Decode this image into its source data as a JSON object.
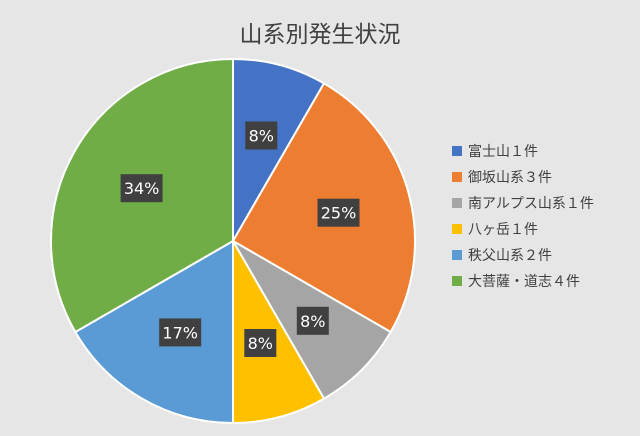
{
  "chart_data": {
    "type": "pie",
    "title": "山系別発生状況",
    "series": [
      {
        "name": "富士山１件",
        "value": 1,
        "label": "8%",
        "color": "#4472C4"
      },
      {
        "name": "御坂山系３件",
        "value": 3,
        "label": "25%",
        "color": "#ED7D31"
      },
      {
        "name": "南アルプス山系１件",
        "value": 1,
        "label": "8%",
        "color": "#A5A5A5"
      },
      {
        "name": "八ヶ岳１件",
        "value": 1,
        "label": "8%",
        "color": "#FFC000"
      },
      {
        "name": "秩父山系２件",
        "value": 2,
        "label": "17%",
        "color": "#5B9BD5"
      },
      {
        "name": "大菩薩・道志４件",
        "value": 4,
        "label": "34%",
        "color": "#70AD47"
      }
    ],
    "legend": "right",
    "data_label_color": "#404040"
  }
}
